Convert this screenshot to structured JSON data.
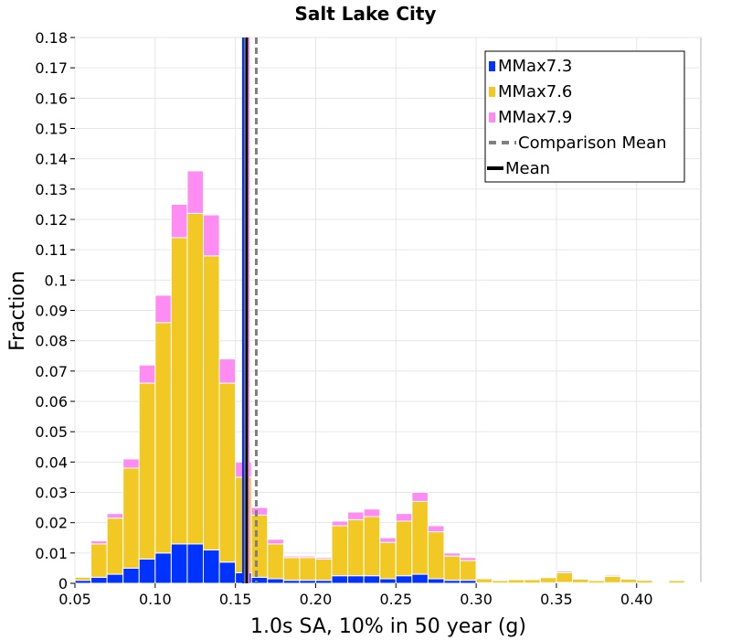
{
  "chart_data": {
    "type": "bar",
    "stacked": true,
    "title": "Salt Lake City",
    "xlabel": "1.0s SA, 10% in 50 year (g)",
    "ylabel": "Fraction",
    "xlim": [
      0.05,
      0.44
    ],
    "ylim": [
      0,
      0.18
    ],
    "grid": true,
    "legend_position": "top-right",
    "bin_width": 0.01,
    "x": [
      0.055,
      0.065,
      0.075,
      0.085,
      0.095,
      0.105,
      0.115,
      0.125,
      0.135,
      0.145,
      0.155,
      0.165,
      0.175,
      0.185,
      0.195,
      0.205,
      0.215,
      0.225,
      0.235,
      0.245,
      0.255,
      0.265,
      0.275,
      0.285,
      0.295,
      0.305,
      0.315,
      0.325,
      0.335,
      0.345,
      0.355,
      0.365,
      0.375,
      0.385,
      0.395,
      0.405,
      0.415,
      0.425,
      0.435
    ],
    "series": [
      {
        "name": "MMax7.3",
        "color": "#0033ff",
        "values": [
          0.001,
          0.002,
          0.003,
          0.005,
          0.008,
          0.01,
          0.013,
          0.013,
          0.011,
          0.007,
          0.0035,
          0.002,
          0.0015,
          0.001,
          0.001,
          0.001,
          0.0025,
          0.0025,
          0.0025,
          0.0015,
          0.0025,
          0.003,
          0.0015,
          0.001,
          0.001,
          0.0002,
          0.0001,
          0.0001,
          0.0001,
          0.0002,
          0.0003,
          0.0002,
          0.0001,
          0.0002,
          0.0002,
          0.0001,
          0.0,
          0.0001,
          0.0
        ]
      },
      {
        "name": "MMax7.6",
        "color": "#f2c824",
        "values": [
          0.001,
          0.011,
          0.0185,
          0.033,
          0.058,
          0.076,
          0.101,
          0.109,
          0.097,
          0.059,
          0.0315,
          0.0205,
          0.0115,
          0.0075,
          0.0075,
          0.007,
          0.0165,
          0.0185,
          0.0195,
          0.012,
          0.018,
          0.024,
          0.0155,
          0.008,
          0.0065,
          0.0013,
          0.0008,
          0.0011,
          0.0011,
          0.0017,
          0.0032,
          0.0012,
          0.0008,
          0.0021,
          0.0012,
          0.0009,
          0.0003,
          0.0008,
          0.0002
        ]
      },
      {
        "name": "MMax7.9",
        "color": "#ff8cf2",
        "values": [
          0.0002,
          0.001,
          0.0015,
          0.003,
          0.006,
          0.009,
          0.011,
          0.014,
          0.0135,
          0.008,
          0.005,
          0.0025,
          0.0015,
          0.0005,
          0.0005,
          0.0005,
          0.0015,
          0.0025,
          0.0025,
          0.0015,
          0.0025,
          0.003,
          0.002,
          0.001,
          0.001,
          0.0002,
          0.0001,
          0.0001,
          0.0001,
          0.0002,
          0.0005,
          0.0002,
          0.0001,
          0.0004,
          0.0002,
          0.0002,
          0.0001,
          0.0002,
          0.0001
        ]
      }
    ],
    "lines": [
      {
        "name": "Comparison Mean",
        "x": 0.163,
        "color": "#808080",
        "dashed": true
      },
      {
        "name": "Mean",
        "x": 0.157,
        "color": "#000000",
        "dashed": false
      }
    ],
    "extra_vlines": [
      {
        "x": 0.155,
        "color": "#0033ff"
      },
      {
        "x": 0.1565,
        "color": "#f2c824"
      },
      {
        "x": 0.158,
        "color": "#ff8cf2"
      }
    ],
    "xticks": [
      "0.05",
      "0.10",
      "0.15",
      "0.20",
      "0.25",
      "0.30",
      "0.35",
      "0.40"
    ],
    "xtick_values": [
      0.05,
      0.1,
      0.15,
      0.2,
      0.25,
      0.3,
      0.35,
      0.4
    ],
    "yticks": [
      "0",
      "0.01",
      "0.02",
      "0.03",
      "0.04",
      "0.05",
      "0.06",
      "0.07",
      "0.08",
      "0.09",
      "0.1",
      "0.11",
      "0.12",
      "0.13",
      "0.14",
      "0.15",
      "0.16",
      "0.17",
      "0.18"
    ],
    "ytick_values": [
      0,
      0.01,
      0.02,
      0.03,
      0.04,
      0.05,
      0.06,
      0.07,
      0.08,
      0.09,
      0.1,
      0.11,
      0.12,
      0.13,
      0.14,
      0.15,
      0.16,
      0.17,
      0.18
    ],
    "legend": [
      {
        "label": "MMax7.3",
        "kind": "box",
        "color": "#0033ff"
      },
      {
        "label": "MMax7.6",
        "kind": "box",
        "color": "#f2c824"
      },
      {
        "label": "MMax7.9",
        "kind": "box",
        "color": "#ff8cf2"
      },
      {
        "label": "Comparison Mean",
        "kind": "dash",
        "color": "#808080"
      },
      {
        "label": "Mean",
        "kind": "line",
        "color": "#000000"
      }
    ]
  }
}
